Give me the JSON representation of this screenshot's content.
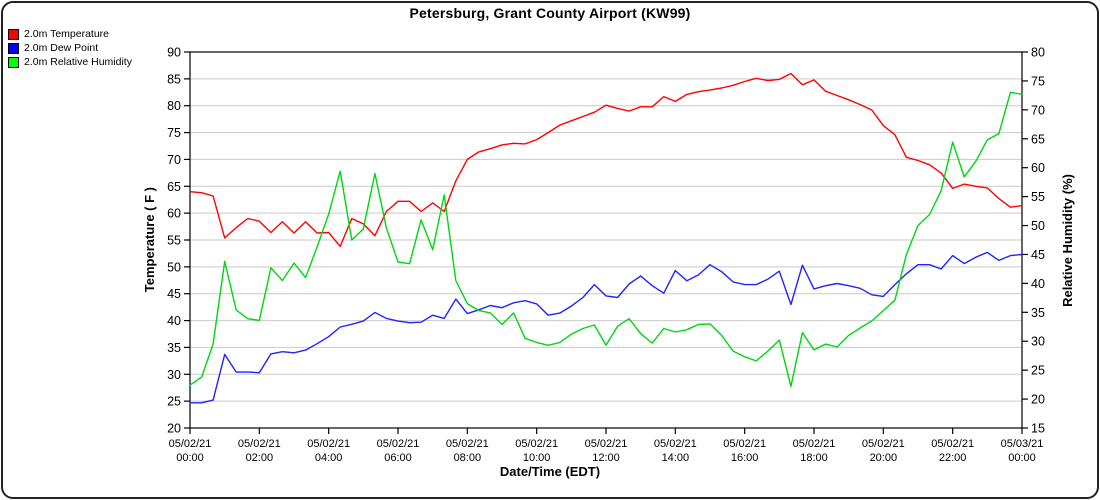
{
  "title": "Petersburg, Grant County Airport (KW99)",
  "chart_data": {
    "type": "line",
    "title": "Petersburg, Grant County Airport (KW99)",
    "xlabel": "Date/Time (EDT)",
    "grid": true,
    "legend_position": "top-left",
    "sample_interval_minutes": 20,
    "start_time": "05/02/21 00:00",
    "end_time": "05/03/21 00:00",
    "axes": {
      "y_left": {
        "label": "Temperature ( F )",
        "min": 20,
        "max": 90,
        "tick_step": 5
      },
      "y_right": {
        "label": "Relative Humidity (%)",
        "min": 15,
        "max": 80,
        "tick_step": 5
      }
    },
    "x_ticks": [
      {
        "date": "05/02/21",
        "time": "00:00"
      },
      {
        "date": "05/02/21",
        "time": "02:00"
      },
      {
        "date": "05/02/21",
        "time": "04:00"
      },
      {
        "date": "05/02/21",
        "time": "06:00"
      },
      {
        "date": "05/02/21",
        "time": "08:00"
      },
      {
        "date": "05/02/21",
        "time": "10:00"
      },
      {
        "date": "05/02/21",
        "time": "12:00"
      },
      {
        "date": "05/02/21",
        "time": "14:00"
      },
      {
        "date": "05/02/21",
        "time": "16:00"
      },
      {
        "date": "05/02/21",
        "time": "18:00"
      },
      {
        "date": "05/02/21",
        "time": "20:00"
      },
      {
        "date": "05/02/21",
        "time": "22:00"
      },
      {
        "date": "05/03/21",
        "time": "00:00"
      }
    ],
    "series": [
      {
        "name": "2.0m Temperature",
        "axis": "left",
        "color": "#ff0000",
        "swatch_color": "#ff0000",
        "values": [
          64.0,
          63.8,
          63.2,
          55.4,
          57.3,
          59.0,
          58.5,
          56.4,
          58.4,
          56.3,
          58.4,
          56.3,
          56.4,
          53.8,
          59.0,
          58.0,
          55.8,
          60.3,
          62.2,
          62.2,
          60.3,
          61.9,
          60.3,
          66.0,
          70.0,
          71.4,
          72.0,
          72.7,
          73.0,
          72.9,
          73.7,
          75.0,
          76.4,
          77.2,
          78.0,
          78.8,
          80.1,
          79.5,
          79.0,
          79.8,
          79.8,
          81.7,
          80.8,
          82.1,
          82.6,
          82.9,
          83.3,
          83.8,
          84.5,
          85.1,
          84.7,
          84.9,
          86.0,
          83.9,
          84.8,
          82.7,
          81.9,
          81.1,
          80.2,
          79.2,
          76.3,
          74.6,
          70.4,
          69.8,
          69.0,
          67.5,
          64.6,
          65.4,
          65.0,
          64.7,
          62.7,
          61.1,
          61.4
        ]
      },
      {
        "name": "2.0m Dew Point",
        "axis": "left",
        "color": "#2222ff",
        "swatch_color": "#0000ff",
        "values": [
          24.7,
          24.7,
          25.2,
          33.7,
          30.4,
          30.4,
          30.3,
          33.8,
          34.2,
          34.0,
          34.5,
          35.7,
          37.0,
          38.8,
          39.3,
          39.9,
          41.5,
          40.4,
          39.9,
          39.6,
          39.7,
          41.0,
          40.4,
          44.0,
          41.3,
          42.0,
          42.8,
          42.4,
          43.3,
          43.7,
          43.1,
          41.0,
          41.4,
          42.7,
          44.3,
          46.7,
          44.6,
          44.3,
          46.8,
          48.3,
          46.5,
          45.1,
          49.3,
          47.4,
          48.5,
          50.4,
          49.1,
          47.2,
          46.7,
          46.7,
          47.7,
          49.2,
          43.0,
          50.3,
          45.9,
          46.5,
          46.9,
          46.5,
          46.0,
          44.8,
          44.5,
          46.7,
          48.7,
          50.4,
          50.4,
          49.6,
          52.1,
          50.6,
          51.8,
          52.7,
          51.2,
          52.1,
          52.3
        ]
      },
      {
        "name": "2.0m Relative Humidity",
        "axis": "right",
        "color": "#00d512",
        "swatch_color": "#00ff00",
        "values": [
          22.4,
          23.8,
          29.5,
          43.8,
          35.4,
          33.9,
          33.6,
          42.7,
          40.5,
          43.5,
          41.0,
          46.3,
          52.0,
          59.4,
          47.5,
          49.4,
          59.0,
          49.6,
          43.7,
          43.4,
          51.0,
          45.8,
          55.3,
          40.5,
          36.5,
          35.3,
          34.9,
          32.9,
          34.9,
          30.5,
          29.8,
          29.3,
          29.8,
          31.2,
          32.2,
          32.8,
          29.3,
          32.6,
          33.9,
          31.3,
          29.7,
          32.2,
          31.6,
          32.0,
          32.9,
          33.0,
          31.0,
          28.3,
          27.3,
          26.6,
          28.3,
          30.2,
          22.2,
          31.5,
          28.5,
          29.5,
          29.0,
          31.0,
          32.3,
          33.5,
          35.3,
          37.1,
          45.0,
          50.0,
          51.9,
          56.0,
          64.4,
          58.4,
          61.1,
          64.8,
          65.9,
          73.0,
          72.7
        ]
      }
    ]
  }
}
